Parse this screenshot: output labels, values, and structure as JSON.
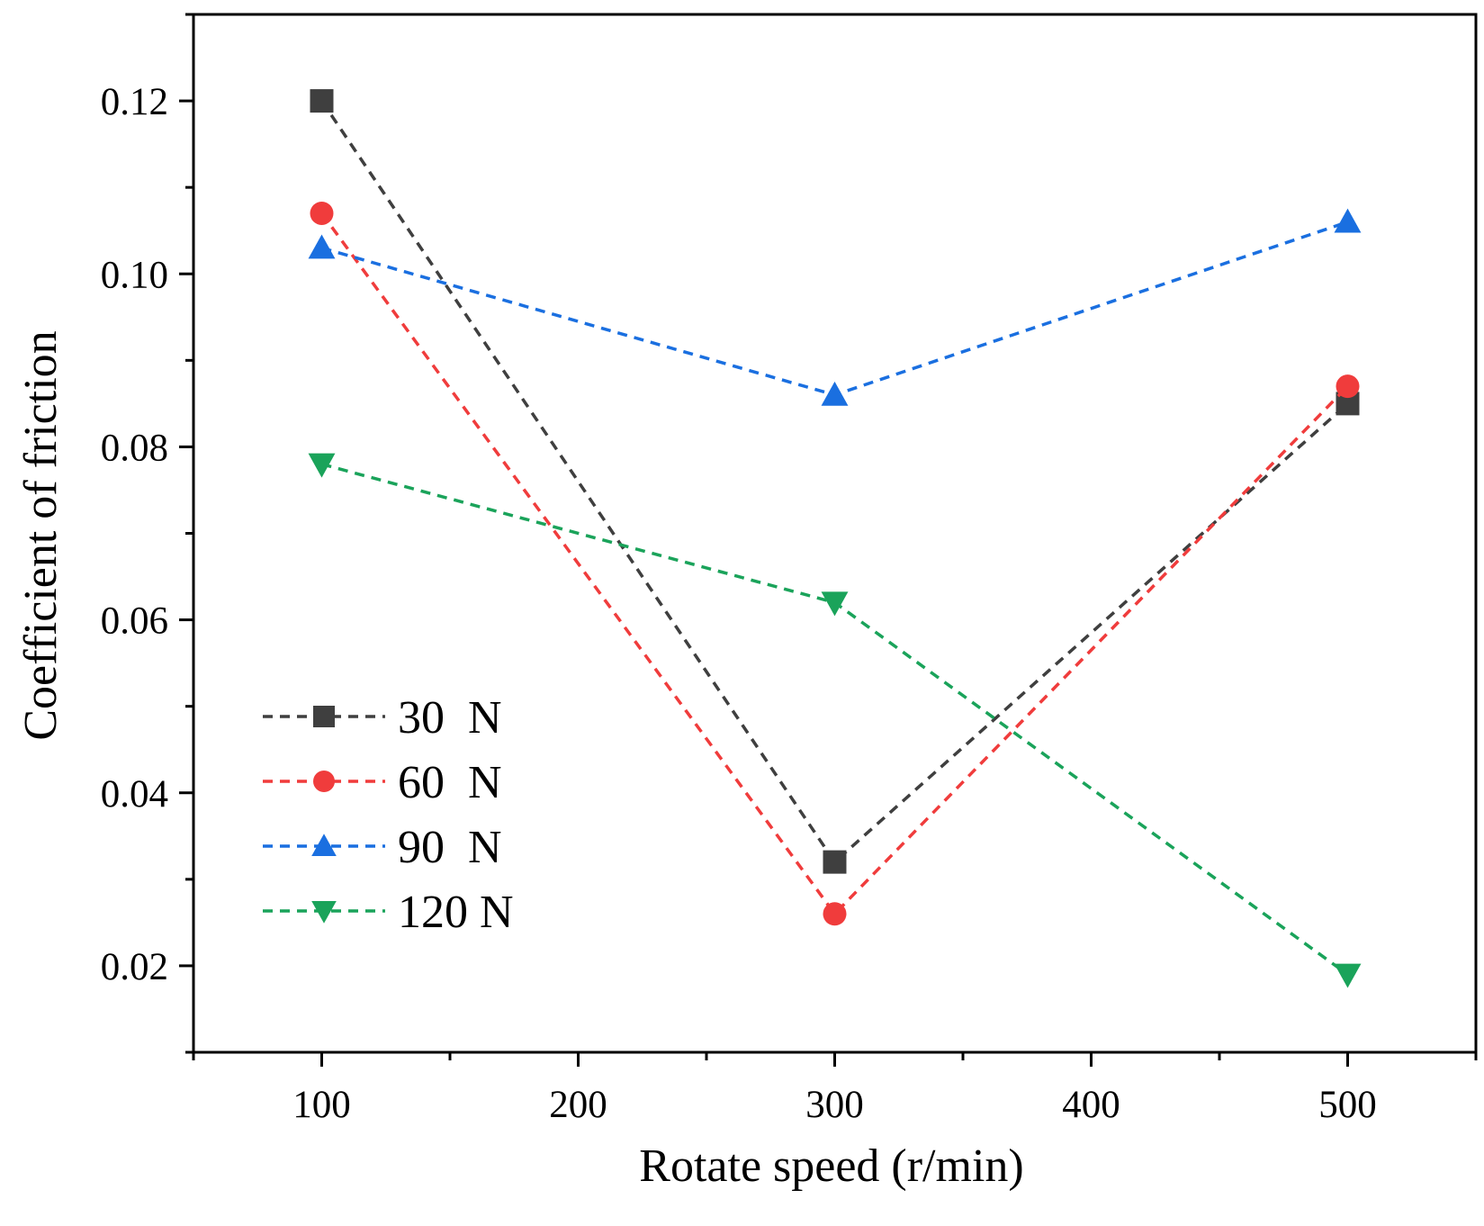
{
  "chart_data": {
    "type": "line",
    "title": "",
    "xlabel": "Rotate speed (r/min)",
    "ylabel": "Coefficient of friction",
    "xlim": [
      50,
      550
    ],
    "ylim": [
      0.01,
      0.13
    ],
    "x_ticks": [
      100,
      200,
      300,
      400,
      500
    ],
    "x_tick_labels": [
      "100",
      "200",
      "300",
      "400",
      "500"
    ],
    "x_minor_ticks": [
      50,
      150,
      250,
      350,
      450,
      550
    ],
    "y_ticks": [
      0.02,
      0.04,
      0.06,
      0.08,
      0.1,
      0.12
    ],
    "y_tick_labels": [
      "0.02",
      "0.04",
      "0.06",
      "0.08",
      "0.10",
      "0.12"
    ],
    "y_minor_ticks": [
      0.01,
      0.03,
      0.05,
      0.07,
      0.09,
      0.11,
      0.13
    ],
    "grid": false,
    "legend_position": "bottom-left",
    "x": [
      100,
      300,
      500
    ],
    "series": [
      {
        "name": "30  N",
        "color": "#3f3f3f",
        "marker": "square",
        "values": [
          0.12,
          0.032,
          0.085
        ]
      },
      {
        "name": "60  N",
        "color": "#f03c3c",
        "marker": "circle",
        "values": [
          0.107,
          0.026,
          0.087
        ]
      },
      {
        "name": "90  N",
        "color": "#1a6fe0",
        "marker": "triangle-up",
        "values": [
          0.103,
          0.086,
          0.106
        ]
      },
      {
        "name": "120 N",
        "color": "#1aa35a",
        "marker": "triangle-down",
        "values": [
          0.078,
          0.062,
          0.019
        ]
      }
    ]
  }
}
